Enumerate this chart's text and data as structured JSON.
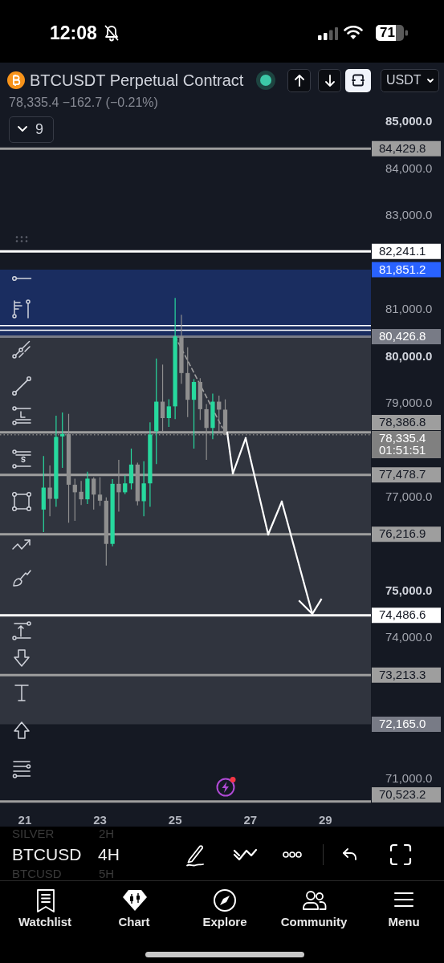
{
  "chart_data": {
    "type": "candlestick",
    "title": "BTCUSDT Perpetual Contract",
    "subtitle": "78,335.4 −162.7 (−0.21%)",
    "x": [
      21.5,
      21.667,
      21.833,
      22,
      22.167,
      22.333,
      22.5,
      22.667,
      22.833,
      23,
      23.167,
      23.333,
      23.5,
      23.667,
      23.833,
      24,
      24.167,
      24.333,
      24.5,
      24.667,
      24.833,
      25,
      25.167,
      25.333,
      25.5,
      25.667,
      25.833,
      26,
      26.167,
      26.333
    ],
    "ohlc": [
      [
        76740,
        77880,
        76260,
        77210
      ],
      [
        77210,
        77680,
        76600,
        76970
      ],
      [
        76970,
        78740,
        76800,
        78290
      ],
      [
        78300,
        78810,
        77630,
        78350
      ],
      [
        78350,
        78780,
        76460,
        77270
      ],
      [
        77270,
        77400,
        76500,
        77110
      ],
      [
        77120,
        77350,
        76840,
        76960
      ],
      [
        76960,
        77550,
        76860,
        77400
      ],
      [
        77400,
        77430,
        76740,
        77060
      ],
      [
        77060,
        77430,
        76820,
        76930
      ],
      [
        76930,
        77000,
        75550,
        76010
      ],
      [
        76010,
        77390,
        75960,
        77290
      ],
      [
        77290,
        77800,
        76700,
        77110
      ],
      [
        77110,
        77470,
        77070,
        77300
      ],
      [
        77300,
        78040,
        77170,
        77700
      ],
      [
        77700,
        77740,
        76830,
        76920
      ],
      [
        76920,
        77770,
        76600,
        77300
      ],
      [
        77300,
        78600,
        76800,
        78340
      ],
      [
        78410,
        79960,
        77710,
        79040
      ],
      [
        79040,
        79830,
        78410,
        78690
      ],
      [
        78690,
        79090,
        78500,
        78940
      ],
      [
        78940,
        81250,
        78670,
        80430
      ],
      [
        80430,
        80890,
        79420,
        79650
      ],
      [
        79650,
        80200,
        78710,
        79080
      ],
      [
        79080,
        79520,
        78040,
        79460
      ],
      [
        79460,
        79540,
        78650,
        78880
      ],
      [
        78880,
        78990,
        77800,
        78480
      ],
      [
        78480,
        79210,
        78240,
        79040
      ],
      [
        79040,
        79170,
        78380,
        78870
      ],
      [
        78870,
        79090,
        78330,
        78335.4
      ]
    ],
    "colors": [
      "#27d99e",
      "#8f8f8f",
      "#27d99e",
      "#27d99e",
      "#8f8f8f",
      "#8f8f8f",
      "#8f8f8f",
      "#27d99e",
      "#8f8f8f",
      "#8f8f8f",
      "#8f8f8f",
      "#27d99e",
      "#8f8f8f",
      "#27d99e",
      "#27d99e",
      "#8f8f8f",
      "#27d99e",
      "#27d99e",
      "#27d99e",
      "#8f8f8f",
      "#27d99e",
      "#27d99e",
      "#8f8f8f",
      "#8f8f8f",
      "#27d99e",
      "#8f8f8f",
      "#8f8f8f",
      "#27d99e",
      "#8f8f8f",
      "#8f8f8f"
    ],
    "series": [
      {
        "type": "line",
        "color": "#a0a0a0",
        "line_style": "dashed",
        "x": [
          25,
          26.26
        ],
        "values": [
          80430,
          78480
        ]
      }
    ],
    "xlim": [
      20.34,
      30.21
    ],
    "xticks": [
      21,
      23,
      25,
      27,
      29
    ],
    "ylim": [
      70500,
      86230
    ],
    "yticks": [
      {
        "value": 71000,
        "label": "71,000.0"
      },
      {
        "value": 74000,
        "label": "74,000.0"
      },
      {
        "value": 75000,
        "label": "75,000.0"
      },
      {
        "value": 77000,
        "label": "77,000.0"
      },
      {
        "value": 79000,
        "label": "79,000.0"
      },
      {
        "value": 80000,
        "label": "80,000.0"
      },
      {
        "value": 81000,
        "label": "81,000.0"
      },
      {
        "value": 83000,
        "label": "83,000.0"
      },
      {
        "value": 84000,
        "label": "84,000.0"
      },
      {
        "value": 85000,
        "label": "85,000.0"
      }
    ],
    "bands": [
      {
        "axis": "y",
        "from": 80426.8,
        "to": 81851.2,
        "label": "81,851.2",
        "color": "#2962ff"
      },
      {
        "axis": "y",
        "from": 72165.0,
        "to": 80426.8,
        "label": "72,165.0",
        "color": "#787b86"
      }
    ],
    "ref_lines": [
      {
        "axis": "y",
        "value": 84429.8,
        "label": "84,429.8",
        "color": "#9e9e9e"
      },
      {
        "axis": "y",
        "value": 82241.1,
        "label": "82,241.1",
        "color": "#ffffff"
      },
      {
        "axis": "y",
        "value": 80660,
        "label": null,
        "color": "#ffffff"
      },
      {
        "axis": "y",
        "value": 80560,
        "label": null,
        "color": "#ffffff"
      },
      {
        "axis": "y",
        "value": 80426.8,
        "label": "80,426.8",
        "color": "#787b86"
      },
      {
        "axis": "y",
        "value": 78386.8,
        "label": "78,386.8",
        "color": "#9e9e9e"
      },
      {
        "axis": "y",
        "value": 78335.4,
        "label": "78,335.4",
        "color": "#808080",
        "line_style": "dotted"
      },
      {
        "axis": "y",
        "value": 77478.7,
        "label": "77,478.7",
        "color": "#9e9e9e"
      },
      {
        "axis": "y",
        "value": 76216.9,
        "label": "76,216.9",
        "color": "#9e9e9e"
      },
      {
        "axis": "y",
        "value": 74486.6,
        "label": "74,486.6",
        "color": "#ffffff"
      },
      {
        "axis": "y",
        "value": 73213.3,
        "label": "73,213.3",
        "color": "#9e9e9e"
      },
      {
        "axis": "y",
        "value": 70523.2,
        "label": "70,523.2",
        "color": "#9e9e9e"
      }
    ],
    "annotations": [
      "01:51:51",
      "12:08",
      "71",
      "USDT",
      "9",
      "SILVER",
      "2H",
      "BTCUSD",
      "4H",
      "BTCUSD",
      "5H",
      "Watchlist",
      "Chart",
      "Explore",
      "Community",
      "Menu"
    ]
  }
}
